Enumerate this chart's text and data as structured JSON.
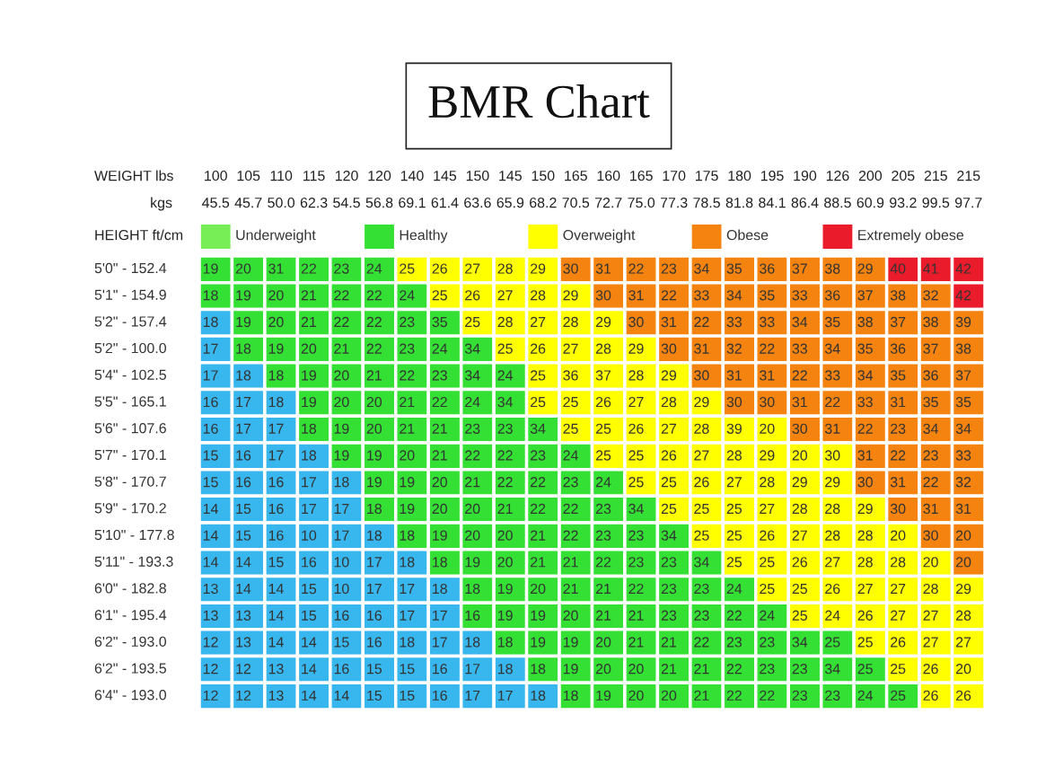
{
  "chart_data": {
    "type": "heatmap",
    "title": "BMR Chart",
    "xlabel": "WEIGHT lbs",
    "x2label": "kgs",
    "ylabel": "HEIGHT ft/cm",
    "legend": "top",
    "categories": [
      "100\n45.5",
      "105\n45.7",
      "110\n50.0",
      "115\n62.3",
      "120\n54.5",
      "120\n56.8",
      "140\n69.1",
      "145\n61.4",
      "150\n63.6",
      "145\n65.9",
      "150\n68.2",
      "165\n70.5",
      "160\n72.7",
      "165\n75.0",
      "170\n77.3",
      "175\n78.5",
      "180\n81.8",
      "195\n84.1",
      "190\n86.4",
      "126\n88.5",
      "200\n60.9",
      "205\n93.2",
      "215\n99.5",
      "215\n97.7"
    ],
    "y_categories": [
      "5'0\" - 152.4",
      "5'1\" - 154.9",
      "5'2\" - 157.4",
      "5'2\" - 100.0",
      "5'4\" - 102.5",
      "5'5\" - 165.1",
      "5'6\" - 107.6",
      "5'7\" - 170.1",
      "5'8\" - 170.7",
      "5'9\" - 170.2",
      "5'10\" - 177.8",
      "5'11\" - 193.3",
      "6'0\" - 182.8",
      "6'1\" - 195.4",
      "6'2\" - 193.0",
      "6'2\" - 193.5",
      "6'4\" - 193.0"
    ],
    "series": [
      {
        "name": "Underweight",
        "color": "#77ee55",
        "values": [
          null,
          null,
          null,
          null,
          null,
          null,
          null,
          null,
          null,
          null,
          null,
          null,
          null,
          null,
          null,
          null,
          null,
          null,
          null,
          null,
          null,
          null,
          null,
          null
        ]
      },
      {
        "name": "Healthy",
        "color": "#33e033",
        "values": [
          null,
          null,
          null,
          null,
          null,
          null,
          null,
          null,
          null,
          null,
          null,
          null,
          null,
          null,
          null,
          null,
          null,
          null,
          null,
          null,
          null,
          null,
          null,
          null
        ]
      },
      {
        "name": "Overweight",
        "color": "#ffff00",
        "values": [
          null,
          null,
          null,
          null,
          null,
          null,
          null,
          null,
          null,
          null,
          null,
          null,
          null,
          null,
          null,
          null,
          null,
          null,
          null,
          null,
          null,
          null,
          null,
          null
        ]
      },
      {
        "name": "Obese",
        "color": "#f5830f",
        "values": [
          null,
          null,
          null,
          null,
          null,
          null,
          null,
          null,
          null,
          null,
          null,
          null,
          null,
          null,
          null,
          null,
          null,
          null,
          null,
          null,
          null,
          null,
          null,
          null
        ]
      },
      {
        "name": "Extremely obese",
        "color": "#ea1c2c",
        "values": [
          null,
          null,
          null,
          null,
          null,
          null,
          null,
          null,
          null,
          null,
          null,
          null,
          null,
          null,
          null,
          null,
          null,
          null,
          null,
          null,
          null,
          null,
          null,
          null
        ]
      }
    ],
    "cells": [
      [
        19,
        20,
        31,
        22,
        23,
        24,
        25,
        26,
        27,
        28,
        29,
        30,
        31,
        22,
        23,
        34,
        35,
        36,
        37,
        38,
        29,
        40,
        41,
        42
      ],
      [
        18,
        19,
        20,
        21,
        22,
        22,
        24,
        25,
        26,
        27,
        28,
        29,
        30,
        31,
        22,
        33,
        34,
        35,
        33,
        36,
        37,
        38,
        32,
        42
      ],
      [
        18,
        19,
        20,
        21,
        22,
        22,
        23,
        35,
        25,
        28,
        27,
        28,
        29,
        30,
        31,
        22,
        33,
        33,
        34,
        35,
        38,
        37,
        38,
        39
      ],
      [
        17,
        18,
        19,
        20,
        21,
        22,
        23,
        24,
        34,
        25,
        26,
        27,
        28,
        29,
        30,
        31,
        32,
        22,
        33,
        34,
        35,
        36,
        37,
        38
      ],
      [
        17,
        18,
        18,
        19,
        20,
        21,
        22,
        23,
        34,
        24,
        25,
        36,
        37,
        28,
        29,
        30,
        31,
        31,
        22,
        33,
        34,
        35,
        36,
        37
      ],
      [
        16,
        17,
        18,
        19,
        20,
        20,
        21,
        22,
        24,
        34,
        25,
        25,
        26,
        27,
        28,
        29,
        30,
        30,
        31,
        22,
        33,
        31,
        35,
        35
      ],
      [
        16,
        17,
        17,
        18,
        19,
        20,
        21,
        21,
        23,
        23,
        34,
        25,
        25,
        26,
        27,
        28,
        39,
        20,
        30,
        31,
        22,
        23,
        34,
        34
      ],
      [
        15,
        16,
        17,
        18,
        19,
        19,
        20,
        21,
        22,
        22,
        23,
        24,
        25,
        25,
        26,
        27,
        28,
        29,
        20,
        30,
        31,
        22,
        23,
        33
      ],
      [
        15,
        16,
        16,
        17,
        18,
        19,
        19,
        20,
        21,
        22,
        22,
        23,
        24,
        25,
        25,
        26,
        27,
        28,
        29,
        29,
        30,
        31,
        22,
        32
      ],
      [
        14,
        15,
        16,
        17,
        17,
        18,
        19,
        20,
        20,
        21,
        22,
        22,
        23,
        34,
        25,
        25,
        25,
        27,
        28,
        28,
        29,
        30,
        31,
        31
      ],
      [
        14,
        15,
        16,
        10,
        17,
        18,
        18,
        19,
        20,
        20,
        21,
        22,
        23,
        23,
        34,
        25,
        25,
        26,
        27,
        28,
        28,
        20,
        30,
        20
      ],
      [
        14,
        14,
        15,
        16,
        10,
        17,
        18,
        18,
        19,
        20,
        21,
        21,
        22,
        23,
        23,
        34,
        25,
        25,
        26,
        27,
        28,
        28,
        20,
        20
      ],
      [
        13,
        14,
        14,
        15,
        10,
        17,
        17,
        18,
        18,
        19,
        20,
        21,
        21,
        22,
        23,
        23,
        24,
        25,
        25,
        26,
        27,
        27,
        28,
        29
      ],
      [
        13,
        13,
        14,
        15,
        16,
        16,
        17,
        17,
        16,
        19,
        19,
        20,
        21,
        21,
        23,
        23,
        22,
        24,
        25,
        24,
        26,
        27,
        27,
        28
      ],
      [
        12,
        13,
        14,
        14,
        15,
        16,
        18,
        17,
        18,
        18,
        19,
        19,
        20,
        21,
        21,
        22,
        23,
        23,
        34,
        25,
        25,
        26,
        27,
        27
      ],
      [
        12,
        12,
        13,
        14,
        16,
        15,
        15,
        16,
        17,
        18,
        18,
        19,
        20,
        20,
        21,
        21,
        22,
        23,
        23,
        34,
        25,
        25,
        26,
        20
      ],
      [
        12,
        12,
        13,
        14,
        14,
        15,
        15,
        16,
        17,
        17,
        18,
        18,
        19,
        20,
        20,
        21,
        22,
        22,
        23,
        23,
        24,
        25,
        26,
        26
      ]
    ],
    "colors": [
      [
        "#33e033",
        "#33e033",
        "#33e033",
        "#33e033",
        "#33e033",
        "#33e033",
        "#ffff00",
        "#ffff00",
        "#ffff00",
        "#ffff00",
        "#ffff00",
        "#f5830f",
        "#f5830f",
        "#f5830f",
        "#f5830f",
        "#f5830f",
        "#f5830f",
        "#f5830f",
        "#f5830f",
        "#f5830f",
        "#f5830f",
        "#ea1c2c",
        "#ea1c2c",
        "#ea1c2c"
      ],
      [
        "#33e033",
        "#33e033",
        "#33e033",
        "#33e033",
        "#33e033",
        "#33e033",
        "#33e033",
        "#ffff00",
        "#ffff00",
        "#ffff00",
        "#ffff00",
        "#ffff00",
        "#f5830f",
        "#f5830f",
        "#f5830f",
        "#f5830f",
        "#f5830f",
        "#f5830f",
        "#f5830f",
        "#f5830f",
        "#f5830f",
        "#f5830f",
        "#f5830f",
        "#ea1c2c"
      ],
      [
        "#38b6ee",
        "#33e033",
        "#33e033",
        "#33e033",
        "#33e033",
        "#33e033",
        "#33e033",
        "#33e033",
        "#ffff00",
        "#ffff00",
        "#ffff00",
        "#ffff00",
        "#ffff00",
        "#f5830f",
        "#f5830f",
        "#f5830f",
        "#f5830f",
        "#f5830f",
        "#f5830f",
        "#f5830f",
        "#f5830f",
        "#f5830f",
        "#f5830f",
        "#f5830f"
      ],
      [
        "#38b6ee",
        "#33e033",
        "#33e033",
        "#33e033",
        "#33e033",
        "#33e033",
        "#33e033",
        "#33e033",
        "#33e033",
        "#ffff00",
        "#ffff00",
        "#ffff00",
        "#ffff00",
        "#ffff00",
        "#f5830f",
        "#f5830f",
        "#f5830f",
        "#f5830f",
        "#f5830f",
        "#f5830f",
        "#f5830f",
        "#f5830f",
        "#f5830f",
        "#f5830f"
      ],
      [
        "#38b6ee",
        "#38b6ee",
        "#33e033",
        "#33e033",
        "#33e033",
        "#33e033",
        "#33e033",
        "#33e033",
        "#33e033",
        "#33e033",
        "#ffff00",
        "#ffff00",
        "#ffff00",
        "#ffff00",
        "#ffff00",
        "#f5830f",
        "#f5830f",
        "#f5830f",
        "#f5830f",
        "#f5830f",
        "#f5830f",
        "#f5830f",
        "#f5830f",
        "#f5830f"
      ],
      [
        "#38b6ee",
        "#38b6ee",
        "#38b6ee",
        "#33e033",
        "#33e033",
        "#33e033",
        "#33e033",
        "#33e033",
        "#33e033",
        "#33e033",
        "#ffff00",
        "#ffff00",
        "#ffff00",
        "#ffff00",
        "#ffff00",
        "#ffff00",
        "#f5830f",
        "#f5830f",
        "#f5830f",
        "#f5830f",
        "#f5830f",
        "#f5830f",
        "#f5830f",
        "#f5830f"
      ],
      [
        "#38b6ee",
        "#38b6ee",
        "#38b6ee",
        "#33e033",
        "#33e033",
        "#33e033",
        "#33e033",
        "#33e033",
        "#33e033",
        "#33e033",
        "#33e033",
        "#ffff00",
        "#ffff00",
        "#ffff00",
        "#ffff00",
        "#ffff00",
        "#ffff00",
        "#ffff00",
        "#f5830f",
        "#f5830f",
        "#f5830f",
        "#f5830f",
        "#f5830f",
        "#f5830f"
      ],
      [
        "#38b6ee",
        "#38b6ee",
        "#38b6ee",
        "#38b6ee",
        "#33e033",
        "#33e033",
        "#33e033",
        "#33e033",
        "#33e033",
        "#33e033",
        "#33e033",
        "#33e033",
        "#ffff00",
        "#ffff00",
        "#ffff00",
        "#ffff00",
        "#ffff00",
        "#ffff00",
        "#ffff00",
        "#ffff00",
        "#f5830f",
        "#f5830f",
        "#f5830f",
        "#f5830f"
      ],
      [
        "#38b6ee",
        "#38b6ee",
        "#38b6ee",
        "#38b6ee",
        "#38b6ee",
        "#33e033",
        "#33e033",
        "#33e033",
        "#33e033",
        "#33e033",
        "#33e033",
        "#33e033",
        "#33e033",
        "#ffff00",
        "#ffff00",
        "#ffff00",
        "#ffff00",
        "#ffff00",
        "#ffff00",
        "#ffff00",
        "#f5830f",
        "#f5830f",
        "#f5830f",
        "#f5830f"
      ],
      [
        "#38b6ee",
        "#38b6ee",
        "#38b6ee",
        "#38b6ee",
        "#38b6ee",
        "#33e033",
        "#33e033",
        "#33e033",
        "#33e033",
        "#33e033",
        "#33e033",
        "#33e033",
        "#33e033",
        "#33e033",
        "#ffff00",
        "#ffff00",
        "#ffff00",
        "#ffff00",
        "#ffff00",
        "#ffff00",
        "#ffff00",
        "#f5830f",
        "#f5830f",
        "#f5830f"
      ],
      [
        "#38b6ee",
        "#38b6ee",
        "#38b6ee",
        "#38b6ee",
        "#38b6ee",
        "#38b6ee",
        "#33e033",
        "#33e033",
        "#33e033",
        "#33e033",
        "#33e033",
        "#33e033",
        "#33e033",
        "#33e033",
        "#33e033",
        "#ffff00",
        "#ffff00",
        "#ffff00",
        "#ffff00",
        "#ffff00",
        "#ffff00",
        "#ffff00",
        "#f5830f",
        "#f5830f"
      ],
      [
        "#38b6ee",
        "#38b6ee",
        "#38b6ee",
        "#38b6ee",
        "#38b6ee",
        "#38b6ee",
        "#38b6ee",
        "#33e033",
        "#33e033",
        "#33e033",
        "#33e033",
        "#33e033",
        "#33e033",
        "#33e033",
        "#33e033",
        "#33e033",
        "#ffff00",
        "#ffff00",
        "#ffff00",
        "#ffff00",
        "#ffff00",
        "#ffff00",
        "#ffff00",
        "#f5830f"
      ],
      [
        "#38b6ee",
        "#38b6ee",
        "#38b6ee",
        "#38b6ee",
        "#38b6ee",
        "#38b6ee",
        "#38b6ee",
        "#38b6ee",
        "#33e033",
        "#33e033",
        "#33e033",
        "#33e033",
        "#33e033",
        "#33e033",
        "#33e033",
        "#33e033",
        "#33e033",
        "#ffff00",
        "#ffff00",
        "#ffff00",
        "#ffff00",
        "#ffff00",
        "#ffff00",
        "#ffff00"
      ],
      [
        "#38b6ee",
        "#38b6ee",
        "#38b6ee",
        "#38b6ee",
        "#38b6ee",
        "#38b6ee",
        "#38b6ee",
        "#38b6ee",
        "#33e033",
        "#33e033",
        "#33e033",
        "#33e033",
        "#33e033",
        "#33e033",
        "#33e033",
        "#33e033",
        "#33e033",
        "#33e033",
        "#ffff00",
        "#ffff00",
        "#ffff00",
        "#ffff00",
        "#ffff00",
        "#ffff00"
      ],
      [
        "#38b6ee",
        "#38b6ee",
        "#38b6ee",
        "#38b6ee",
        "#38b6ee",
        "#38b6ee",
        "#38b6ee",
        "#38b6ee",
        "#38b6ee",
        "#33e033",
        "#33e033",
        "#33e033",
        "#33e033",
        "#33e033",
        "#33e033",
        "#33e033",
        "#33e033",
        "#33e033",
        "#33e033",
        "#33e033",
        "#ffff00",
        "#ffff00",
        "#ffff00",
        "#ffff00"
      ],
      [
        "#38b6ee",
        "#38b6ee",
        "#38b6ee",
        "#38b6ee",
        "#38b6ee",
        "#38b6ee",
        "#38b6ee",
        "#38b6ee",
        "#38b6ee",
        "#38b6ee",
        "#33e033",
        "#33e033",
        "#33e033",
        "#33e033",
        "#33e033",
        "#33e033",
        "#33e033",
        "#33e033",
        "#33e033",
        "#33e033",
        "#33e033",
        "#ffff00",
        "#ffff00",
        "#ffff00"
      ],
      [
        "#38b6ee",
        "#38b6ee",
        "#38b6ee",
        "#38b6ee",
        "#38b6ee",
        "#38b6ee",
        "#38b6ee",
        "#38b6ee",
        "#38b6ee",
        "#38b6ee",
        "#38b6ee",
        "#33e033",
        "#33e033",
        "#33e033",
        "#33e033",
        "#33e033",
        "#33e033",
        "#33e033",
        "#33e033",
        "#33e033",
        "#33e033",
        "#33e033",
        "#ffff00",
        "#ffff00"
      ]
    ],
    "data_labels": true
  }
}
